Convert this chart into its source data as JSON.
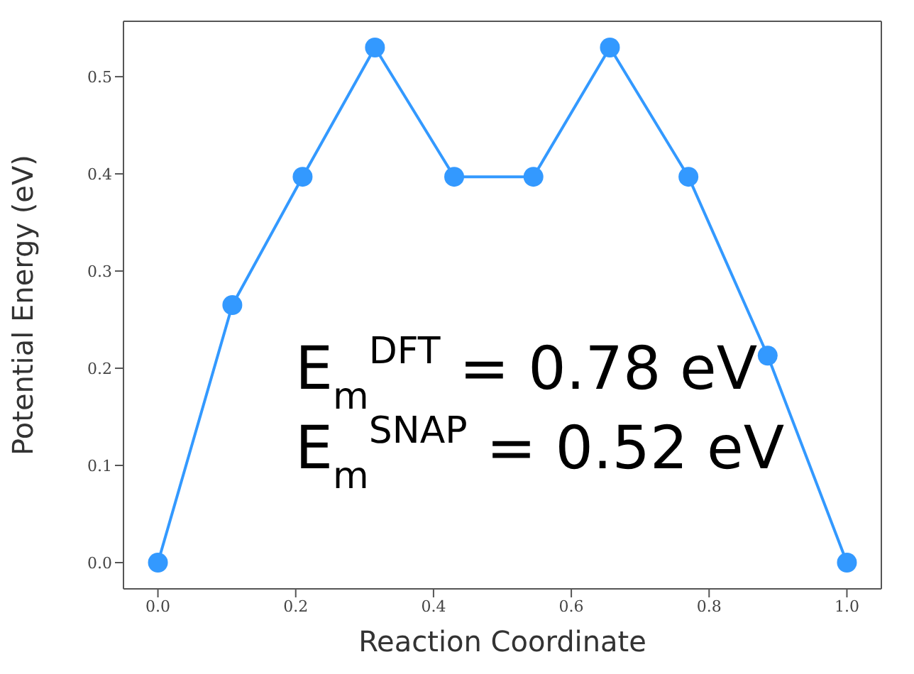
{
  "chart_data": {
    "type": "line",
    "xlabel": "Reaction Coordinate",
    "ylabel": "Potential Energy (eV)",
    "x": [
      0,
      0.108,
      0.21,
      0.315,
      0.43,
      0.545,
      0.656,
      0.77,
      0.885,
      1.0
    ],
    "series": [
      {
        "color": "#3399ff",
        "values": [
          0,
          0.265,
          0.397,
          0.53,
          0.397,
          0.397,
          0.53,
          0.397,
          0.213,
          0
        ]
      }
    ],
    "xlim": [
      -0.05,
      1.05
    ],
    "xticks": [
      {
        "value": 0,
        "label": "0.0"
      },
      0.2,
      0.4,
      0.6,
      0.8,
      {
        "value": 1,
        "label": "1.0"
      }
    ],
    "ylim": [
      -0.027,
      0.557
    ],
    "yticks": [
      {
        "value": 0,
        "label": "0.0"
      },
      0.1,
      0.2,
      0.3,
      0.4,
      0.5
    ],
    "marker": "circle",
    "line_style": "solid",
    "annotations": [
      "E$_{m}$$^{DFT}$ = 0.78 eV",
      "E$_{m}$$^{SNAP}$ = 0.52 eV"
    ]
  }
}
